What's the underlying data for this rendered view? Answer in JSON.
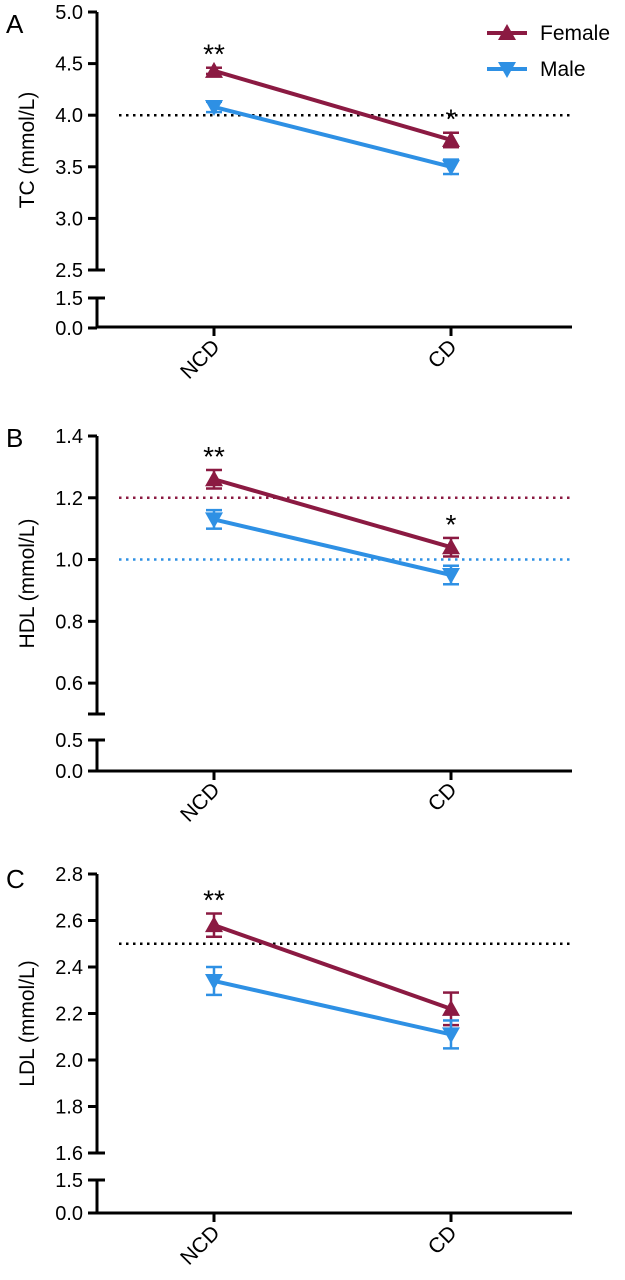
{
  "colors": {
    "female": "#8B1A42",
    "male": "#2E90E4",
    "axis": "#000000"
  },
  "legend": [
    {
      "series": "Female",
      "marker": "triangle-up",
      "color": "#8B1A42"
    },
    {
      "series": "Male",
      "marker": "triangle-down",
      "color": "#2E90E4"
    }
  ],
  "chart_data": [
    {
      "panel": "A",
      "type": "line",
      "ylabel": "TC (mmol/L)",
      "categories": [
        "NCD",
        "CD"
      ],
      "axis_break": true,
      "ylim_upper": [
        2.5,
        5.0
      ],
      "ylim_lower": [
        0.0,
        1.5
      ],
      "yticks_upper": [
        "2.5",
        "3.0",
        "3.5",
        "4.0",
        "4.5",
        "5.0"
      ],
      "yticks_lower": [
        "0.0",
        "1.5"
      ],
      "series": [
        {
          "name": "Female",
          "marker": "triangle-up",
          "values": [
            4.43,
            3.76
          ],
          "errors": [
            0.03,
            0.07
          ]
        },
        {
          "name": "Male",
          "marker": "triangle-down",
          "values": [
            4.08,
            3.5
          ],
          "errors": [
            0.05,
            0.07
          ]
        }
      ],
      "reference_lines": [
        {
          "y": 4.0,
          "style": "dotted",
          "color": "#000000"
        }
      ],
      "annotations": [
        {
          "category": "NCD",
          "text": "**"
        },
        {
          "category": "CD",
          "text": "*"
        }
      ],
      "legend": "top-right",
      "grid": false
    },
    {
      "panel": "B",
      "type": "line",
      "ylabel": "HDL (mmol/L)",
      "categories": [
        "NCD",
        "CD"
      ],
      "axis_break": true,
      "ylim_upper": [
        0.5,
        1.4
      ],
      "ylim_lower": [
        0.0,
        0.5
      ],
      "yticks_upper": [
        "0.6",
        "0.8",
        "1.0",
        "1.2",
        "1.4"
      ],
      "yticks_lower": [
        "0.0",
        "0.5"
      ],
      "series": [
        {
          "name": "Female",
          "marker": "triangle-up",
          "values": [
            1.26,
            1.04
          ],
          "errors": [
            0.03,
            0.03
          ]
        },
        {
          "name": "Male",
          "marker": "triangle-down",
          "values": [
            1.13,
            0.95
          ],
          "errors": [
            0.03,
            0.03
          ]
        }
      ],
      "reference_lines": [
        {
          "y": 1.2,
          "style": "dotted",
          "color": "#8B1A42"
        },
        {
          "y": 1.0,
          "style": "dotted",
          "color": "#2E90E4"
        }
      ],
      "annotations": [
        {
          "category": "NCD",
          "text": "**"
        },
        {
          "category": "CD",
          "text": "*"
        }
      ],
      "grid": false
    },
    {
      "panel": "C",
      "type": "line",
      "ylabel": "LDL (mmol/L)",
      "categories": [
        "NCD",
        "CD"
      ],
      "axis_break": true,
      "ylim_upper": [
        1.6,
        2.8
      ],
      "ylim_lower": [
        0.0,
        1.5
      ],
      "yticks_upper": [
        "1.6",
        "1.8",
        "2.0",
        "2.2",
        "2.4",
        "2.6",
        "2.8"
      ],
      "yticks_lower": [
        "0.0",
        "1.5"
      ],
      "series": [
        {
          "name": "Female",
          "marker": "triangle-up",
          "values": [
            2.58,
            2.22
          ],
          "errors": [
            0.05,
            0.07
          ]
        },
        {
          "name": "Male",
          "marker": "triangle-down",
          "values": [
            2.34,
            2.11
          ],
          "errors": [
            0.06,
            0.06
          ]
        }
      ],
      "reference_lines": [
        {
          "y": 2.5,
          "style": "dotted",
          "color": "#000000"
        }
      ],
      "annotations": [
        {
          "category": "NCD",
          "text": "**"
        }
      ],
      "grid": false
    }
  ]
}
